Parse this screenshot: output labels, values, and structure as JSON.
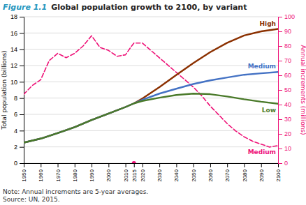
{
  "chart_data": {
    "type": "line",
    "title": "Global population growth to 2100, by variant",
    "annotations": [
      "Figure 1.1",
      "Note: Annual increments are 5-year averages.",
      "Source: UN, 2015."
    ],
    "ylabel": "Total population (billions)",
    "y2label": "Annual increments (millions)",
    "xlim": [
      1950,
      2100
    ],
    "xticks": [
      1950,
      1960,
      1970,
      1980,
      1990,
      2000,
      2010,
      2015,
      2020,
      2030,
      2040,
      2050,
      2060,
      2070,
      2080,
      2090,
      2100
    ],
    "ylim": [
      0,
      18
    ],
    "yticks": [
      0,
      2,
      4,
      6,
      8,
      10,
      12,
      14,
      16,
      18
    ],
    "y2lim": [
      0,
      100
    ],
    "y2ticks": [
      0,
      10,
      20,
      30,
      40,
      50,
      60,
      70,
      80,
      90,
      100
    ],
    "grid": true,
    "series": [
      {
        "name": "High",
        "type": "line",
        "line_style": "solid",
        "color": "#8B3000",
        "x": [
          1950,
          1960,
          1970,
          1980,
          1990,
          2000,
          2010,
          2015,
          2020,
          2030,
          2040,
          2050,
          2060,
          2070,
          2080,
          2090,
          2100
        ],
        "values": [
          2.52,
          3.02,
          3.7,
          4.43,
          5.31,
          6.09,
          6.9,
          7.35,
          7.95,
          9.35,
          10.85,
          12.3,
          13.65,
          14.8,
          15.7,
          16.2,
          16.5
        ]
      },
      {
        "name": "Medium",
        "type": "line",
        "line_style": "solid",
        "color": "#4472c4",
        "x": [
          1950,
          1960,
          1970,
          1980,
          1990,
          2000,
          2010,
          2015,
          2020,
          2030,
          2040,
          2050,
          2060,
          2070,
          2080,
          2090,
          2100
        ],
        "values": [
          2.52,
          3.02,
          3.7,
          4.43,
          5.31,
          6.09,
          6.9,
          7.35,
          7.79,
          8.55,
          9.15,
          9.73,
          10.18,
          10.53,
          10.87,
          11.05,
          11.21
        ]
      },
      {
        "name": "Low",
        "type": "line",
        "line_style": "solid",
        "color": "#4a7a2a",
        "x": [
          1950,
          1960,
          1970,
          1980,
          1990,
          2000,
          2010,
          2015,
          2020,
          2030,
          2040,
          2050,
          2060,
          2070,
          2080,
          2090,
          2100
        ],
        "values": [
          2.52,
          3.02,
          3.7,
          4.43,
          5.31,
          6.09,
          6.9,
          7.35,
          7.65,
          8.05,
          8.38,
          8.55,
          8.48,
          8.2,
          7.85,
          7.55,
          7.3
        ]
      },
      {
        "name": "Medium",
        "type": "line",
        "line_style": "dashed",
        "color": "#ee1177",
        "axis": "y2",
        "x": [
          1950,
          1955,
          1960,
          1965,
          1970,
          1975,
          1980,
          1985,
          1990,
          1995,
          2000,
          2005,
          2010,
          2013,
          2015,
          2020,
          2025,
          2030,
          2035,
          2040,
          2045,
          2050,
          2055,
          2060,
          2065,
          2070,
          2075,
          2080,
          2085,
          2090,
          2095,
          2100
        ],
        "values": [
          47,
          53,
          57,
          70,
          75,
          72,
          75,
          80,
          87,
          79,
          77,
          73,
          74,
          79,
          82,
          82,
          77,
          72,
          67,
          62,
          57,
          52,
          46,
          39,
          33,
          27,
          22,
          18,
          15,
          13,
          11,
          12
        ]
      },
      {
        "type": "scatter",
        "marker": "circle",
        "color": "#ee1177",
        "x": [
          2015
        ],
        "values": [
          0
        ]
      }
    ]
  }
}
